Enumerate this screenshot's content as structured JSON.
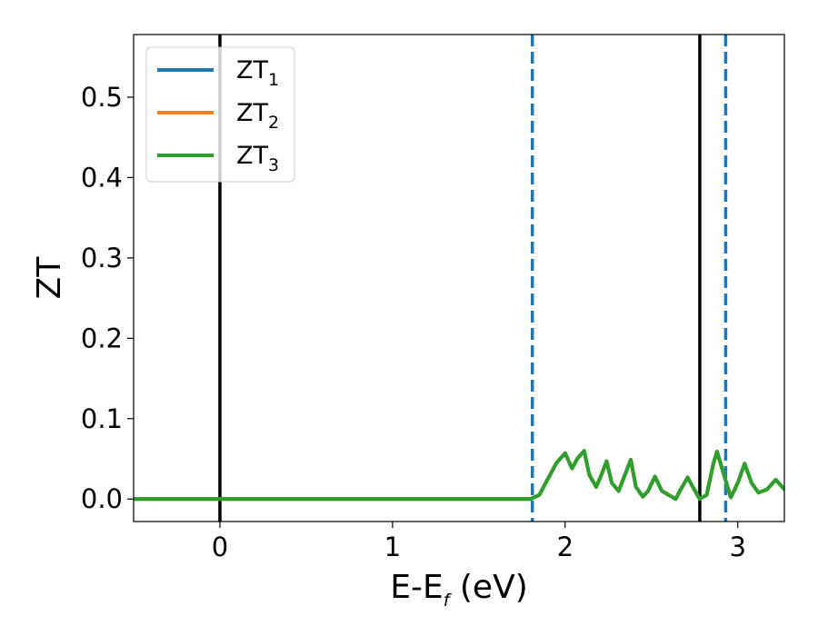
{
  "chart_data": {
    "type": "line",
    "xlabel": "E-E",
    "xlabel_sub": "f",
    "xlabel_unit": " (eV)",
    "ylabel": "ZT",
    "xlim": [
      -0.5,
      3.27
    ],
    "ylim": [
      -0.028,
      0.578
    ],
    "x_ticks": [
      0,
      1,
      2,
      3
    ],
    "x_tick_labels": [
      "0",
      "1",
      "2",
      "3"
    ],
    "y_ticks": [
      0.0,
      0.1,
      0.2,
      0.3,
      0.4,
      0.5
    ],
    "y_tick_labels": [
      "0.0",
      "0.1",
      "0.2",
      "0.3",
      "0.4",
      "0.5"
    ],
    "grid": false,
    "legend_position": "top-left",
    "vertical_lines": [
      {
        "x": 0.0,
        "style": "solid",
        "color": "#000000"
      },
      {
        "x": 2.78,
        "style": "solid",
        "color": "#000000"
      },
      {
        "x": 1.81,
        "style": "dashed",
        "color": "#1f77b4"
      },
      {
        "x": 2.93,
        "style": "dashed",
        "color": "#1f77b4"
      }
    ],
    "series": [
      {
        "name": "ZT",
        "name_sub": "1",
        "color": "#1f77b4",
        "x": [
          -0.5,
          1.7,
          1.8,
          1.85,
          1.9,
          1.95,
          2.0,
          2.04,
          2.07,
          2.11,
          2.14,
          2.18,
          2.21,
          2.24,
          2.27,
          2.31,
          2.35,
          2.38,
          2.41,
          2.45,
          2.48,
          2.52,
          2.56,
          2.6,
          2.64,
          2.67,
          2.71,
          2.74,
          2.78,
          2.82,
          2.86,
          2.88,
          2.92,
          2.96,
          3.0,
          3.04,
          3.08,
          3.12,
          3.17,
          3.22,
          3.27
        ],
        "y": [
          0.0,
          0.0,
          0.0,
          0.005,
          0.025,
          0.045,
          0.057,
          0.038,
          0.05,
          0.06,
          0.03,
          0.015,
          0.03,
          0.047,
          0.02,
          0.01,
          0.032,
          0.049,
          0.015,
          0.003,
          0.01,
          0.028,
          0.01,
          0.005,
          0.0,
          0.012,
          0.027,
          0.015,
          0.0,
          0.005,
          0.045,
          0.059,
          0.03,
          0.002,
          0.02,
          0.044,
          0.02,
          0.008,
          0.012,
          0.024,
          0.012
        ]
      },
      {
        "name": "ZT",
        "name_sub": "2",
        "color": "#ff7f0e",
        "x": [
          -0.5,
          1.7,
          1.8,
          1.85,
          1.9,
          1.95,
          2.0,
          2.04,
          2.07,
          2.11,
          2.14,
          2.18,
          2.21,
          2.24,
          2.27,
          2.31,
          2.35,
          2.38,
          2.41,
          2.45,
          2.48,
          2.52,
          2.56,
          2.6,
          2.64,
          2.67,
          2.71,
          2.74,
          2.78,
          2.82,
          2.86,
          2.88,
          2.92,
          2.96,
          3.0,
          3.04,
          3.08,
          3.12,
          3.17,
          3.22,
          3.27
        ],
        "y": [
          0.0,
          0.0,
          0.0,
          0.005,
          0.025,
          0.045,
          0.057,
          0.038,
          0.05,
          0.06,
          0.03,
          0.015,
          0.03,
          0.047,
          0.02,
          0.01,
          0.032,
          0.049,
          0.015,
          0.003,
          0.01,
          0.028,
          0.01,
          0.005,
          0.0,
          0.012,
          0.027,
          0.015,
          0.0,
          0.005,
          0.045,
          0.059,
          0.03,
          0.002,
          0.02,
          0.044,
          0.02,
          0.008,
          0.012,
          0.024,
          0.012
        ]
      },
      {
        "name": "ZT",
        "name_sub": "3",
        "color": "#2ca02c",
        "x": [
          -0.5,
          1.7,
          1.8,
          1.85,
          1.9,
          1.95,
          2.0,
          2.04,
          2.07,
          2.11,
          2.14,
          2.18,
          2.21,
          2.24,
          2.27,
          2.31,
          2.35,
          2.38,
          2.41,
          2.45,
          2.48,
          2.52,
          2.56,
          2.6,
          2.64,
          2.67,
          2.71,
          2.74,
          2.78,
          2.82,
          2.86,
          2.88,
          2.92,
          2.96,
          3.0,
          3.04,
          3.08,
          3.12,
          3.17,
          3.22,
          3.27
        ],
        "y": [
          0.0,
          0.0,
          0.0,
          0.005,
          0.025,
          0.045,
          0.057,
          0.038,
          0.05,
          0.06,
          0.03,
          0.015,
          0.03,
          0.047,
          0.02,
          0.01,
          0.032,
          0.049,
          0.015,
          0.003,
          0.01,
          0.028,
          0.01,
          0.005,
          0.0,
          0.012,
          0.027,
          0.015,
          0.0,
          0.005,
          0.045,
          0.059,
          0.03,
          0.002,
          0.02,
          0.044,
          0.02,
          0.008,
          0.012,
          0.024,
          0.012
        ]
      }
    ]
  }
}
